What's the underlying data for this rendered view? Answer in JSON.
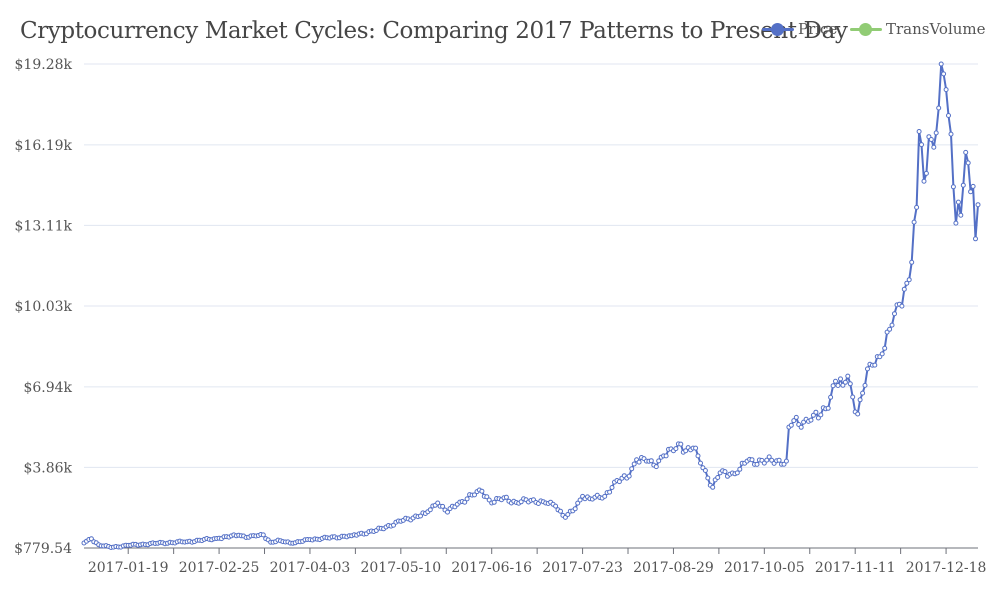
{
  "chart_data": {
    "type": "line",
    "title": "Cryptocurrency Market Cycles: Comparing 2017 Patterns to Present Day",
    "xlabel": "",
    "ylabel": "",
    "ylim": [
      779.54,
      19280
    ],
    "y_tick_labels": [
      "$779.54",
      "$3.86k",
      "$6.94k",
      "$10.03k",
      "$13.11k",
      "$16.19k",
      "$19.28k"
    ],
    "y_tick_values": [
      779.54,
      3860,
      6940,
      10030,
      13110,
      16190,
      19280
    ],
    "x_range": [
      "2017-01-01",
      "2017-12-31"
    ],
    "x_tick_labels": [
      "2017-01-19",
      "2017-02-25",
      "2017-04-03",
      "2017-05-10",
      "2017-06-16",
      "2017-07-23",
      "2017-08-29",
      "2017-10-05",
      "2017-11-11",
      "2017-12-18"
    ],
    "grid": true,
    "legend_position": "top-right",
    "series": [
      {
        "name": "Price",
        "color": "#5470c6",
        "anchors": [
          [
            "2017-01-01",
            970
          ],
          [
            "2017-01-04",
            1130
          ],
          [
            "2017-01-07",
            900
          ],
          [
            "2017-01-12",
            800
          ],
          [
            "2017-01-19",
            880
          ],
          [
            "2017-01-31",
            960
          ],
          [
            "2017-02-12",
            1020
          ],
          [
            "2017-02-25",
            1150
          ],
          [
            "2017-03-05",
            1270
          ],
          [
            "2017-03-09",
            1190
          ],
          [
            "2017-03-12",
            1240
          ],
          [
            "2017-03-15",
            1280
          ],
          [
            "2017-03-18",
            1000
          ],
          [
            "2017-03-22",
            1060
          ],
          [
            "2017-03-27",
            960
          ],
          [
            "2017-04-03",
            1100
          ],
          [
            "2017-04-20",
            1250
          ],
          [
            "2017-04-30",
            1450
          ],
          [
            "2017-05-10",
            1800
          ],
          [
            "2017-05-20",
            2100
          ],
          [
            "2017-05-25",
            2500
          ],
          [
            "2017-05-29",
            2150
          ],
          [
            "2017-06-02",
            2450
          ],
          [
            "2017-06-08",
            2800
          ],
          [
            "2017-06-12",
            2950
          ],
          [
            "2017-06-16",
            2500
          ],
          [
            "2017-06-21",
            2700
          ],
          [
            "2017-06-26",
            2520
          ],
          [
            "2017-07-02",
            2600
          ],
          [
            "2017-07-07",
            2550
          ],
          [
            "2017-07-12",
            2380
          ],
          [
            "2017-07-16",
            1950
          ],
          [
            "2017-07-20",
            2280
          ],
          [
            "2017-07-23",
            2750
          ],
          [
            "2017-07-27",
            2650
          ],
          [
            "2017-08-01",
            2750
          ],
          [
            "2017-08-05",
            3300
          ],
          [
            "2017-08-10",
            3450
          ],
          [
            "2017-08-14",
            4150
          ],
          [
            "2017-08-18",
            4100
          ],
          [
            "2017-08-21",
            3950
          ],
          [
            "2017-08-25",
            4300
          ],
          [
            "2017-08-29",
            4500
          ],
          [
            "2017-09-01",
            4750
          ],
          [
            "2017-09-03",
            4500
          ],
          [
            "2017-09-06",
            4600
          ],
          [
            "2017-09-08",
            4300
          ],
          [
            "2017-09-14",
            3100
          ],
          [
            "2017-09-17",
            3650
          ],
          [
            "2017-09-21",
            3600
          ],
          [
            "2017-09-24",
            3650
          ],
          [
            "2017-09-28",
            4100
          ],
          [
            "2017-10-14",
            4100
          ],
          [
            "2017-10-15",
            5400
          ],
          [
            "2017-10-17",
            5650
          ],
          [
            "2017-10-19",
            5500
          ],
          [
            "2017-10-22",
            5700
          ],
          [
            "2017-10-25",
            5850
          ],
          [
            "2017-10-27",
            5750
          ],
          [
            "2017-10-30",
            6100
          ],
          [
            "2017-11-03",
            7150
          ],
          [
            "2017-11-06",
            7000
          ],
          [
            "2017-11-08",
            7350
          ],
          [
            "2017-11-10",
            6550
          ],
          [
            "2017-11-12",
            5900
          ],
          [
            "2017-11-14",
            6700
          ],
          [
            "2017-11-17",
            7800
          ],
          [
            "2017-11-22",
            8200
          ],
          [
            "2017-11-26",
            9300
          ],
          [
            "2017-11-29",
            10100
          ],
          [
            "2017-12-02",
            10900
          ],
          [
            "2017-12-04",
            11700
          ],
          [
            "2017-12-06",
            13800
          ],
          [
            "2017-12-07",
            16700
          ],
          [
            "2017-12-08",
            16200
          ],
          [
            "2017-12-09",
            14800
          ],
          [
            "2017-12-10",
            15100
          ],
          [
            "2017-12-11",
            16500
          ],
          [
            "2017-12-13",
            16100
          ],
          [
            "2017-12-15",
            17600
          ],
          [
            "2017-12-16",
            19280
          ],
          [
            "2017-12-17",
            18900
          ],
          [
            "2017-12-18",
            18300
          ],
          [
            "2017-12-20",
            16600
          ],
          [
            "2017-12-22",
            13200
          ],
          [
            "2017-12-23",
            14000
          ],
          [
            "2017-12-24",
            13500
          ],
          [
            "2017-12-26",
            15900
          ],
          [
            "2017-12-27",
            15500
          ],
          [
            "2017-12-28",
            14400
          ],
          [
            "2017-12-29",
            14600
          ],
          [
            "2017-12-30",
            12600
          ],
          [
            "2017-12-31",
            13900
          ]
        ]
      },
      {
        "name": "TransVolume",
        "color": "#91cc75",
        "anchors": []
      }
    ]
  }
}
